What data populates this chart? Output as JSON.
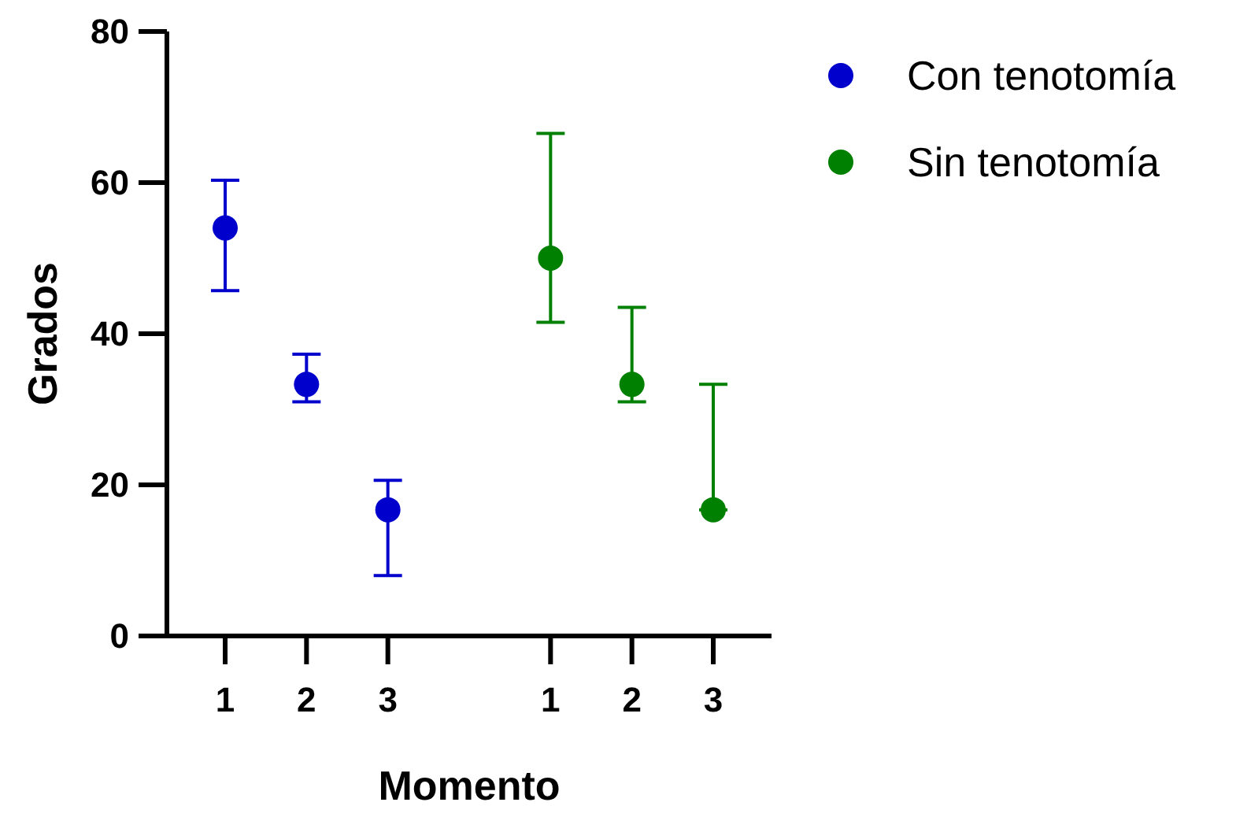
{
  "chart_data": {
    "type": "scatter",
    "xlabel": "Momento",
    "ylabel": "Grados",
    "categories": [
      "1",
      "2",
      "3",
      null,
      "1",
      "2",
      "3"
    ],
    "ylim": [
      0,
      80
    ],
    "yticks": [
      0,
      20,
      40,
      60,
      80
    ],
    "grid": false,
    "legend": "top right",
    "marker": "circle",
    "series": [
      {
        "name": "Con tenotomía",
        "color": "#0000cc",
        "values": [
          54,
          33.3,
          16.7,
          null,
          null,
          null,
          null
        ],
        "errors": [
          [
            45.7,
            60.3
          ],
          [
            31,
            37.3
          ],
          [
            8,
            20.6
          ],
          null,
          null,
          null,
          null
        ]
      },
      {
        "name": "Sin tenotomía",
        "color": "#008000",
        "values": [
          null,
          null,
          null,
          null,
          50,
          33.3,
          16.7
        ],
        "errors": [
          null,
          null,
          null,
          null,
          [
            41.5,
            66.5
          ],
          [
            31,
            43.5
          ],
          [
            16.7,
            33.3
          ]
        ]
      }
    ]
  }
}
